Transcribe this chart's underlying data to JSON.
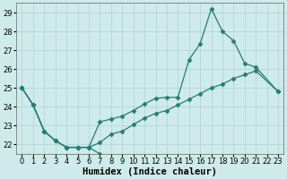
{
  "x": [
    0,
    1,
    2,
    3,
    4,
    5,
    6,
    7,
    8,
    9,
    10,
    11,
    12,
    13,
    14,
    15,
    16,
    17,
    18,
    19,
    20,
    21,
    22,
    23
  ],
  "series": [
    {
      "y": [
        25.0,
        24.1,
        22.7,
        22.2,
        21.85,
        21.85,
        21.85,
        21.5,
        null,
        null,
        null,
        null,
        null,
        null,
        null,
        null,
        null,
        null,
        null,
        null,
        null,
        null,
        null,
        null
      ]
    },
    {
      "y": [
        25.0,
        24.1,
        22.7,
        22.2,
        21.85,
        21.85,
        21.85,
        22.1,
        22.55,
        22.7,
        23.05,
        23.4,
        23.65,
        23.8,
        24.1,
        24.4,
        24.7,
        25.0,
        25.2,
        25.5,
        25.7,
        25.9,
        null,
        24.8
      ]
    },
    {
      "y": [
        25.0,
        24.1,
        22.7,
        22.2,
        21.85,
        21.85,
        21.85,
        23.2,
        23.35,
        23.5,
        23.8,
        24.15,
        24.45,
        24.5,
        24.5,
        26.5,
        27.35,
        29.2,
        28.0,
        27.5,
        26.3,
        26.1,
        null,
        24.8
      ]
    }
  ],
  "color": "#267d6e",
  "bg_color": "#ceeaea",
  "grid_color": "#b2d8d8",
  "xlabel": "Humidex (Indice chaleur)",
  "ylim": [
    21.5,
    29.5
  ],
  "xlim": [
    -0.5,
    23.5
  ],
  "yticks": [
    22,
    23,
    24,
    25,
    26,
    27,
    28,
    29
  ],
  "xticks": [
    0,
    1,
    2,
    3,
    4,
    5,
    6,
    7,
    8,
    9,
    10,
    11,
    12,
    13,
    14,
    15,
    16,
    17,
    18,
    19,
    20,
    21,
    22,
    23
  ],
  "xlabel_fontsize": 7.5,
  "tick_fontsize": 6.0,
  "marker": "D",
  "markersize": 2.5,
  "linewidth": 0.9
}
